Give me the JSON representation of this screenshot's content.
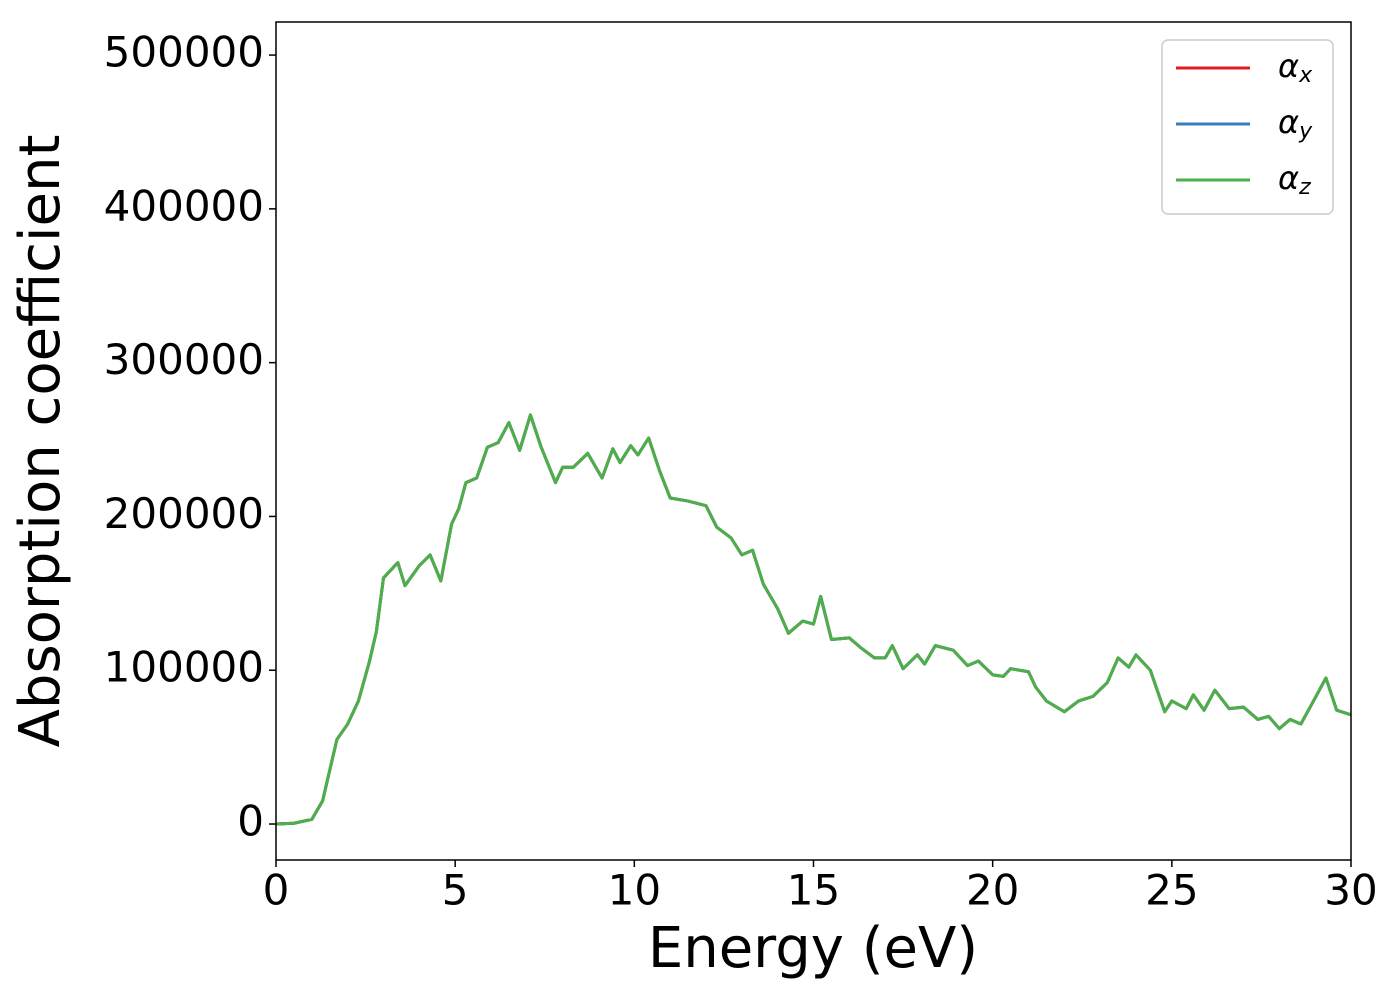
{
  "chart_data": {
    "type": "line",
    "xlabel": "Energy (eV)",
    "ylabel": "Absorption coefficient",
    "xlim": [
      0,
      30
    ],
    "ylim": [
      -23400,
      521500
    ],
    "xticks": [
      0,
      5,
      10,
      15,
      20,
      25,
      30
    ],
    "yticks": [
      0,
      100000,
      200000,
      300000,
      400000,
      500000
    ],
    "legend": "upper right",
    "grid": false,
    "x": [
      0,
      0.5,
      1,
      1.3,
      1.5,
      1.7,
      2,
      2.3,
      2.6,
      2.8,
      3,
      3.2,
      3.4,
      3.6,
      4,
      4.3,
      4.6,
      4.9,
      5.1,
      5.3,
      5.6,
      5.9,
      6.2,
      6.5,
      6.8,
      7.1,
      7.4,
      7.8,
      8,
      8.3,
      8.7,
      9.1,
      9.4,
      9.6,
      9.9,
      10.1,
      10.4,
      10.7,
      11,
      11.5,
      12,
      12.3,
      12.7,
      13,
      13.3,
      13.6,
      14,
      14.3,
      14.7,
      15,
      15.2,
      15.5,
      16,
      16.3,
      16.7,
      17,
      17.2,
      17.5,
      17.9,
      18.1,
      18.4,
      18.9,
      19.3,
      19.6,
      20,
      20.3,
      20.5,
      21,
      21.2,
      21.5,
      22,
      22.4,
      22.8,
      23.2,
      23.5,
      23.8,
      24,
      24.4,
      24.8,
      25,
      25.4,
      25.6,
      25.9,
      26.2,
      26.6,
      27,
      27.4,
      27.7,
      28,
      28.3,
      28.6,
      29,
      29.3,
      29.6,
      30
    ],
    "series": [
      {
        "name": "αx",
        "color": "#e41a1c",
        "values": [
          0,
          500,
          3000,
          15000,
          35000,
          55000,
          65000,
          80000,
          105000,
          125000,
          160000,
          165000,
          170000,
          155000,
          168000,
          175000,
          158000,
          195000,
          205000,
          222000,
          225000,
          245000,
          248000,
          261000,
          243000,
          266000,
          245000,
          222000,
          232000,
          232000,
          241000,
          225000,
          244000,
          235000,
          246000,
          240000,
          251000,
          230000,
          212000,
          210000,
          207000,
          193000,
          186000,
          175000,
          178000,
          156000,
          140000,
          124000,
          132000,
          130000,
          148000,
          120000,
          121000,
          115000,
          108000,
          108000,
          116000,
          101000,
          110000,
          104000,
          116000,
          113000,
          103000,
          106000,
          97000,
          96000,
          101000,
          99000,
          89000,
          80000,
          73000,
          80000,
          83000,
          92000,
          108000,
          102000,
          110000,
          100000,
          73000,
          80000,
          75000,
          84000,
          74000,
          87000,
          75000,
          76000,
          68000,
          70000,
          62000,
          68000,
          65000,
          82000,
          95000,
          74000,
          71000
        ]
      },
      {
        "name": "αy",
        "color": "#377eb8",
        "values": [
          0,
          500,
          3000,
          15000,
          35000,
          55000,
          65000,
          80000,
          105000,
          125000,
          160000,
          165000,
          170000,
          155000,
          168000,
          175000,
          158000,
          195000,
          205000,
          222000,
          225000,
          245000,
          248000,
          261000,
          243000,
          266000,
          245000,
          222000,
          232000,
          232000,
          241000,
          225000,
          244000,
          235000,
          246000,
          240000,
          251000,
          230000,
          212000,
          210000,
          207000,
          193000,
          186000,
          175000,
          178000,
          156000,
          140000,
          124000,
          132000,
          130000,
          148000,
          120000,
          121000,
          115000,
          108000,
          108000,
          116000,
          101000,
          110000,
          104000,
          116000,
          113000,
          103000,
          106000,
          97000,
          96000,
          101000,
          99000,
          89000,
          80000,
          73000,
          80000,
          83000,
          92000,
          108000,
          102000,
          110000,
          100000,
          73000,
          80000,
          75000,
          84000,
          74000,
          87000,
          75000,
          76000,
          68000,
          70000,
          62000,
          68000,
          65000,
          82000,
          95000,
          74000,
          71000
        ]
      },
      {
        "name": "αz",
        "color": "#4daf4a",
        "values": [
          0,
          500,
          3000,
          15000,
          35000,
          55000,
          65000,
          80000,
          105000,
          125000,
          160000,
          165000,
          170000,
          155000,
          168000,
          175000,
          158000,
          195000,
          205000,
          222000,
          225000,
          245000,
          248000,
          261000,
          243000,
          266000,
          245000,
          222000,
          232000,
          232000,
          241000,
          225000,
          244000,
          235000,
          246000,
          240000,
          251000,
          230000,
          212000,
          210000,
          207000,
          193000,
          186000,
          175000,
          178000,
          156000,
          140000,
          124000,
          132000,
          130000,
          148000,
          120000,
          121000,
          115000,
          108000,
          108000,
          116000,
          101000,
          110000,
          104000,
          116000,
          113000,
          103000,
          106000,
          97000,
          96000,
          101000,
          99000,
          89000,
          80000,
          73000,
          80000,
          83000,
          92000,
          108000,
          102000,
          110000,
          100000,
          73000,
          80000,
          75000,
          84000,
          74000,
          87000,
          75000,
          76000,
          68000,
          70000,
          62000,
          68000,
          65000,
          82000,
          95000,
          74000,
          71000
        ]
      }
    ]
  }
}
